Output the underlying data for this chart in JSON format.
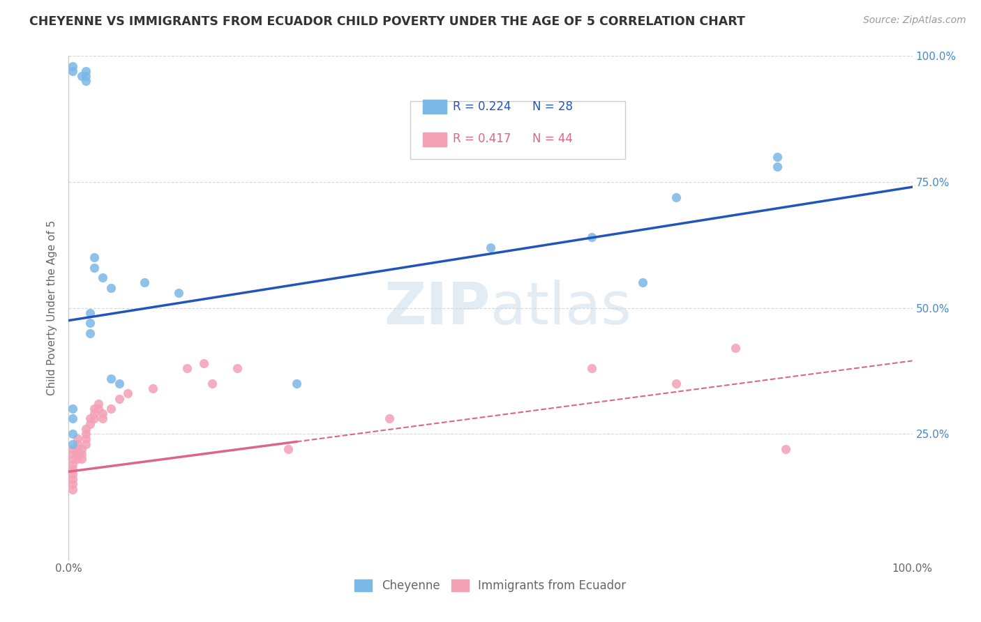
{
  "title": "CHEYENNE VS IMMIGRANTS FROM ECUADOR CHILD POVERTY UNDER THE AGE OF 5 CORRELATION CHART",
  "source": "Source: ZipAtlas.com",
  "ylabel": "Child Poverty Under the Age of 5",
  "xlim": [
    0.0,
    1.0
  ],
  "ylim": [
    0.0,
    1.0
  ],
  "xticks": [
    0.0,
    0.25,
    0.5,
    0.75,
    1.0
  ],
  "yticks": [
    0.0,
    0.25,
    0.5,
    0.75,
    1.0
  ],
  "xticklabels": [
    "0.0%",
    "",
    "",
    "",
    "100.0%"
  ],
  "yticklabels": [
    "",
    "25.0%",
    "50.0%",
    "75.0%",
    "100.0%"
  ],
  "cheyenne_color": "#7ab8e8",
  "ecuador_color": "#f4a0b5",
  "cheyenne_line_color": "#2255bb",
  "ecuador_line_color": "#dd6688",
  "cheyenne_R": 0.224,
  "cheyenne_N": 28,
  "ecuador_R": 0.417,
  "ecuador_N": 44,
  "watermark": "ZIPatlas",
  "background_color": "#ffffff",
  "grid_color": "#d8d8d8",
  "cheyenne_x": [
    0.005,
    0.005,
    0.015,
    0.02,
    0.02,
    0.02,
    0.025,
    0.025,
    0.025,
    0.03,
    0.03,
    0.04,
    0.05,
    0.05,
    0.06,
    0.09,
    0.13,
    0.27,
    0.5,
    0.62,
    0.68,
    0.72,
    0.84,
    0.84,
    0.005,
    0.005,
    0.005,
    0.005
  ],
  "cheyenne_y": [
    0.98,
    0.97,
    0.96,
    0.97,
    0.96,
    0.95,
    0.49,
    0.47,
    0.45,
    0.6,
    0.58,
    0.56,
    0.54,
    0.36,
    0.35,
    0.55,
    0.53,
    0.35,
    0.62,
    0.64,
    0.55,
    0.72,
    0.8,
    0.78,
    0.3,
    0.28,
    0.25,
    0.23
  ],
  "ecuador_x": [
    0.005,
    0.005,
    0.005,
    0.005,
    0.005,
    0.005,
    0.005,
    0.005,
    0.005,
    0.01,
    0.01,
    0.01,
    0.01,
    0.01,
    0.015,
    0.015,
    0.015,
    0.02,
    0.02,
    0.02,
    0.02,
    0.025,
    0.025,
    0.03,
    0.03,
    0.03,
    0.035,
    0.035,
    0.04,
    0.04,
    0.05,
    0.06,
    0.07,
    0.1,
    0.14,
    0.16,
    0.17,
    0.2,
    0.26,
    0.38,
    0.62,
    0.72,
    0.79,
    0.85
  ],
  "ecuador_y": [
    0.22,
    0.21,
    0.2,
    0.19,
    0.18,
    0.17,
    0.16,
    0.15,
    0.14,
    0.24,
    0.23,
    0.22,
    0.21,
    0.2,
    0.22,
    0.21,
    0.2,
    0.26,
    0.25,
    0.24,
    0.23,
    0.28,
    0.27,
    0.3,
    0.29,
    0.28,
    0.31,
    0.3,
    0.29,
    0.28,
    0.3,
    0.32,
    0.33,
    0.34,
    0.38,
    0.39,
    0.35,
    0.38,
    0.22,
    0.28,
    0.38,
    0.35,
    0.42,
    0.22
  ]
}
